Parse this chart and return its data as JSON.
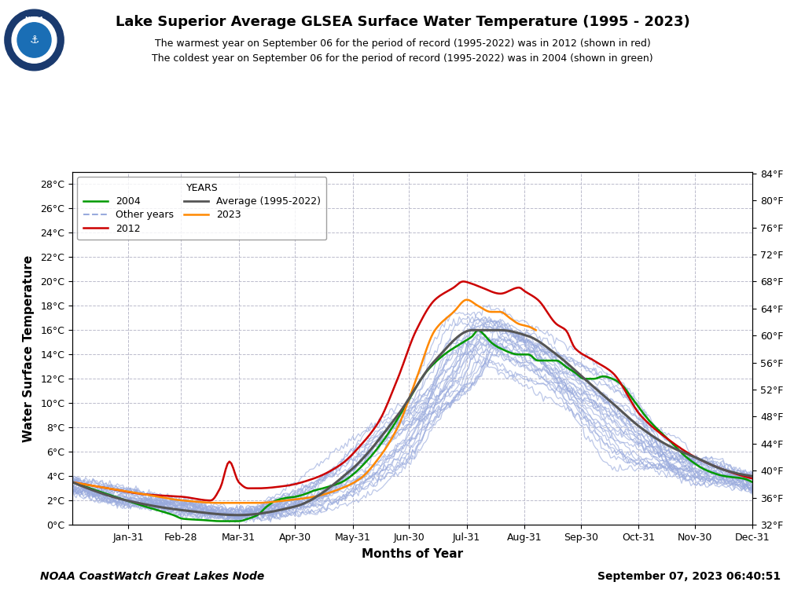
{
  "title": "Lake Superior Average GLSEA Surface Water Temperature (1995 - 2023)",
  "subtitle1": "The warmest year on September 06 for the period of record (1995-2022) was in 2012 (shown in red)",
  "subtitle2": "The coldest year on September 06 for the period of record (1995-2022) was in 2004 (shown in green)",
  "xlabel": "Months of Year",
  "ylabel": "Water Surface Temperature",
  "footer_left": "NOAA CoastWatch Great Lakes Node",
  "footer_right": "September 07, 2023 06:40:51",
  "ylim_c": [
    0,
    29
  ],
  "yticks_c": [
    0,
    2,
    4,
    6,
    8,
    10,
    12,
    14,
    16,
    18,
    20,
    22,
    24,
    26,
    28
  ],
  "ytick_labels_c": [
    "0°C",
    "2°C",
    "4°C",
    "6°C",
    "8°C",
    "10°C",
    "12°C",
    "14°C",
    "16°C",
    "18°C",
    "20°C",
    "22°C",
    "24°C",
    "26°C",
    "28°C"
  ],
  "ytick_labels_f": [
    "32°F",
    "36°F",
    "40°F",
    "44°F",
    "48°F",
    "52°F",
    "56°F",
    "60°F",
    "64°F",
    "68°F",
    "72°F",
    "76°F",
    "80°F",
    "84°F"
  ],
  "xtick_labels": [
    "Jan-31",
    "Feb-28",
    "Mar-31",
    "Apr-30",
    "May-31",
    "Jun-30",
    "Jul-31",
    "Aug-31",
    "Sep-30",
    "Oct-31",
    "Nov-30",
    "Dec-31"
  ],
  "xtick_positions": [
    31,
    59,
    90,
    120,
    151,
    181,
    212,
    243,
    273,
    304,
    334,
    365
  ],
  "color_2004": "#009900",
  "color_2012": "#cc0000",
  "color_2023": "#ff8800",
  "color_avg": "#555555",
  "color_other": "#99aadd",
  "color_grid": "#bbbbcc",
  "background_plot": "#ffffff",
  "background_fig": "#ffffff",
  "legend_title": "YEARS"
}
